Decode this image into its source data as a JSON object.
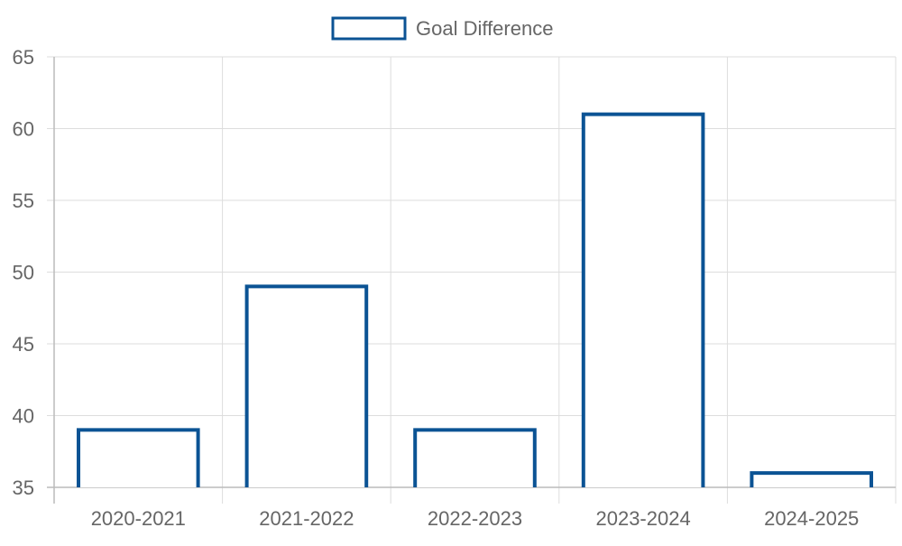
{
  "chart_data": {
    "type": "bar",
    "categories": [
      "2020-2021",
      "2021-2022",
      "2022-2023",
      "2023-2024",
      "2024-2025"
    ],
    "series": [
      {
        "name": "Goal Difference",
        "values": [
          39,
          49,
          39,
          61,
          36
        ]
      }
    ],
    "title": "",
    "xlabel": "",
    "ylabel": "",
    "ylim": [
      35,
      65
    ],
    "yticks": [
      35,
      40,
      45,
      50,
      55,
      60,
      65
    ],
    "grid": true,
    "legend": "top-center",
    "colors": {
      "series_stroke": "#0b5394",
      "series_fill": "#ffffff",
      "grid": "#dddddd",
      "axis": "#bbbbbb",
      "text": "#666666"
    }
  }
}
